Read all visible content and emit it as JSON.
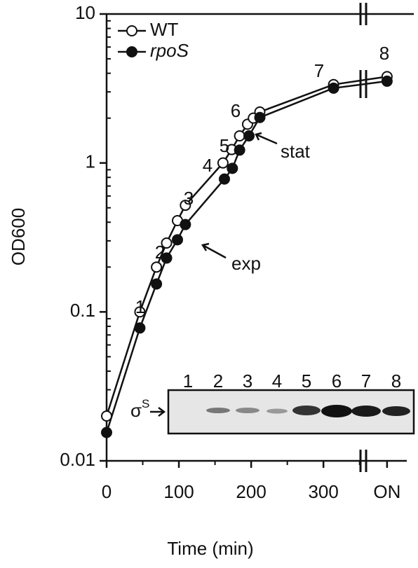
{
  "chart_data": {
    "type": "line",
    "x_label": "Time (min)",
    "y_label": "OD600",
    "log_y": true,
    "xlim": [
      0,
      425
    ],
    "ylim": [
      0.01,
      10
    ],
    "xticks": [
      0,
      100,
      200,
      300,
      {
        "value": 388,
        "label": "ON"
      }
    ],
    "yticks": [
      0.01,
      0.1,
      1,
      10
    ],
    "legend": "top-left",
    "series": [
      {
        "name": "WT",
        "color": "#ffffff",
        "marker": "open",
        "x": [
          0,
          46,
          69,
          83,
          98,
          109,
          161,
          173,
          184,
          195,
          203,
          212,
          314,
          388
        ],
        "values": [
          0.02,
          0.1,
          0.2,
          0.29,
          0.41,
          0.52,
          1.0,
          1.23,
          1.52,
          1.82,
          2.0,
          2.2,
          3.36,
          3.8
        ]
      },
      {
        "name": "rpoS",
        "color": "#111111",
        "marker": "filled",
        "x": [
          0,
          46,
          69,
          83,
          98,
          109,
          163,
          174,
          184,
          197,
          212,
          314,
          388
        ],
        "values": [
          0.0155,
          0.078,
          0.154,
          0.23,
          0.305,
          0.386,
          0.78,
          0.92,
          1.22,
          1.52,
          2.02,
          3.18,
          3.54
        ]
      }
    ],
    "point_labels": [
      "1",
      "2",
      "3",
      "4",
      "5",
      "6",
      "7",
      "8"
    ],
    "annotations": [
      "exp",
      "stat"
    ],
    "inset": {
      "label": "σ",
      "label_sup": "S",
      "lanes": [
        "1",
        "2",
        "3",
        "4",
        "5",
        "6",
        "7",
        "8"
      ]
    }
  }
}
